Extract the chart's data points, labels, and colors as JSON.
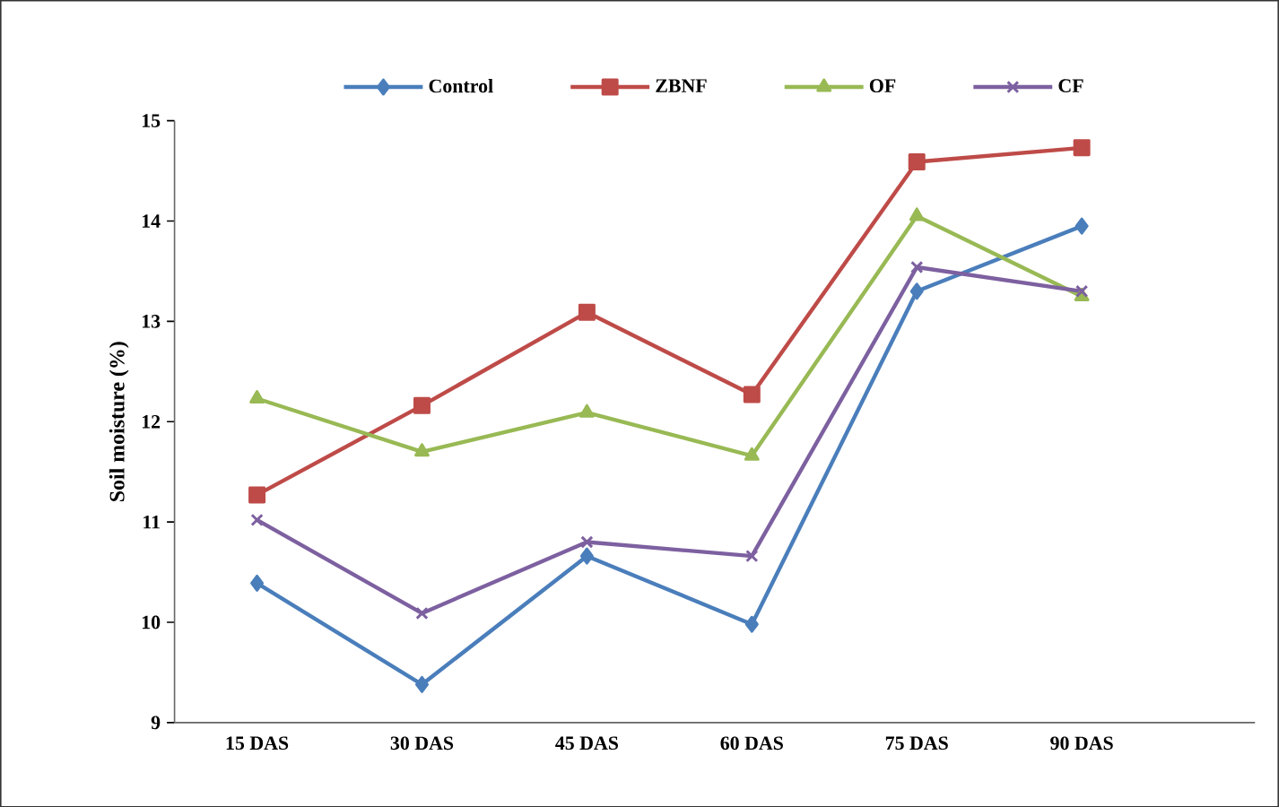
{
  "chart_data": {
    "type": "line",
    "ylabel": "Soil moisture (%)",
    "categories": [
      "15 DAS",
      "30 DAS",
      "45 DAS",
      "60 DAS",
      "75 DAS",
      "90 DAS"
    ],
    "series": [
      {
        "name": "Control",
        "color": "#4a7ebb",
        "marker": "diamond",
        "values": [
          10.39,
          9.38,
          10.66,
          9.98,
          13.3,
          13.95
        ]
      },
      {
        "name": "ZBNF",
        "color": "#be4b48",
        "marker": "square",
        "values": [
          11.27,
          12.16,
          13.09,
          12.27,
          14.59,
          14.73
        ]
      },
      {
        "name": "OF",
        "color": "#98b954",
        "marker": "triangle",
        "values": [
          12.23,
          11.7,
          12.09,
          11.66,
          14.05,
          13.25
        ]
      },
      {
        "name": "CF",
        "color": "#7d60a0",
        "marker": "cross",
        "values": [
          11.02,
          10.09,
          10.8,
          10.66,
          13.54,
          13.3
        ]
      }
    ],
    "ylim": [
      9,
      15
    ],
    "yticks": [
      9,
      10,
      11,
      12,
      13,
      14,
      15
    ],
    "grid": false,
    "legend": "top"
  }
}
